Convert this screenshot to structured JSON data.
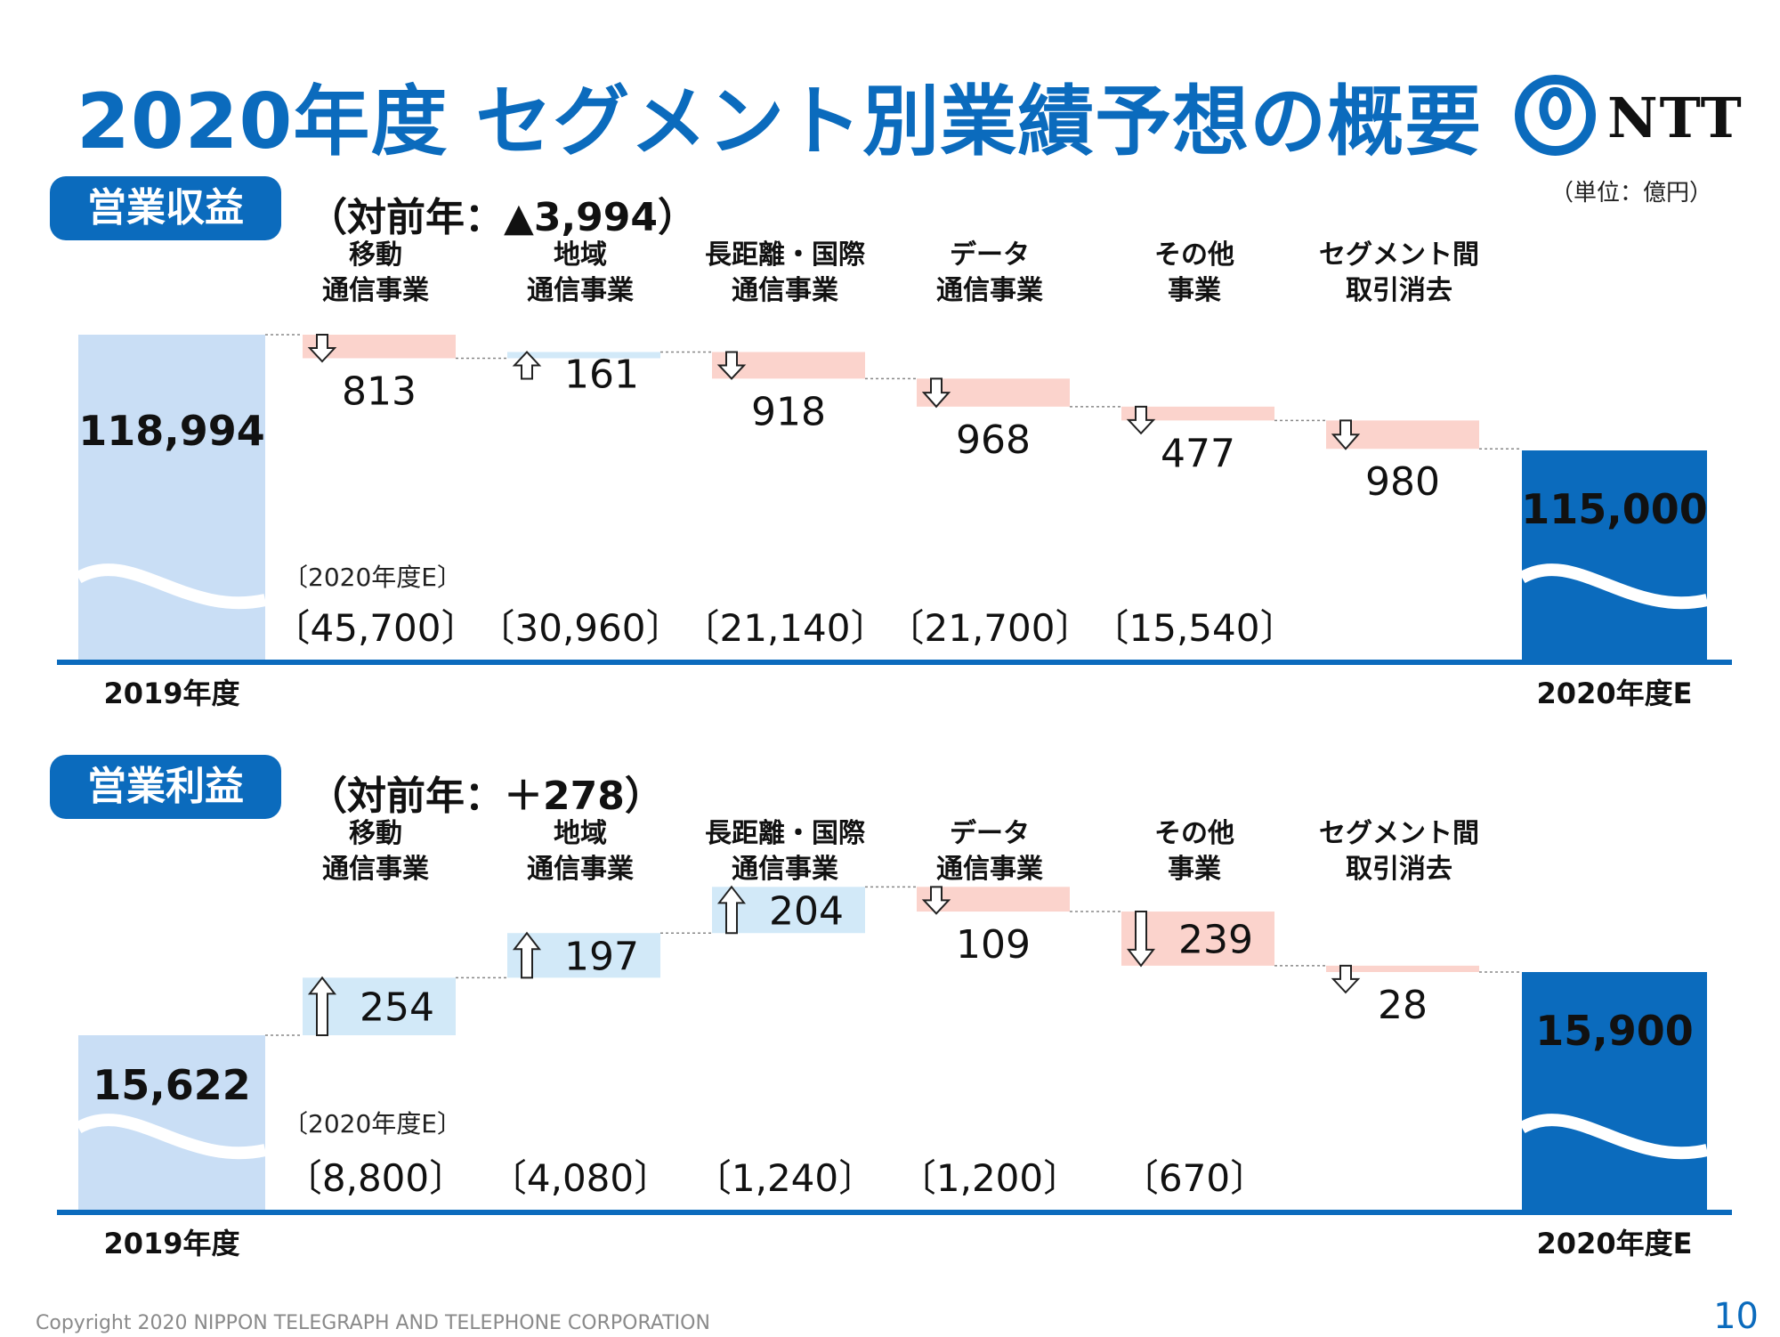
{
  "title": "2020年度 セグメント別業績予想の概要",
  "logo": {
    "text": "NTT",
    "mark": "ntt-logo-icon"
  },
  "unit": "（単位：億円）",
  "footer": "Copyright 2020 NIPPON TELEGRAPH AND TELEPHONE CORPORATION",
  "page_number": "10",
  "colors": {
    "primary": "#0b6bbd",
    "light_bar": "#c9def5",
    "decrease": "#fbd3cc",
    "increase": "#d2e9f8",
    "axis": "#0b6bbd"
  },
  "chart_data": [
    {
      "type": "bar",
      "subtype": "waterfall",
      "title": "営業収益",
      "subtitle": "（対前年：▲3,994）",
      "start": {
        "label": "2019年度",
        "value": 118994,
        "display": "118,994"
      },
      "end": {
        "label": "2020年度E",
        "value": 115000,
        "display": "115,000"
      },
      "categories": [
        "移動\n通信事業",
        "地域\n通信事業",
        "長距離・国際\n通信事業",
        "データ\n通信事業",
        "その他\n事業",
        "セグメント間\n取引消去"
      ],
      "category_lines": [
        [
          "移動",
          "通信事業"
        ],
        [
          "地域",
          "通信事業"
        ],
        [
          "長距離・国際",
          "通信事業"
        ],
        [
          "データ",
          "通信事業"
        ],
        [
          "その他",
          "事業"
        ],
        [
          "セグメント間",
          "取引消去"
        ]
      ],
      "changes": [
        -813,
        161,
        -918,
        -968,
        -477,
        -980
      ],
      "change_labels": [
        "813",
        "161",
        "918",
        "968",
        "477",
        "980"
      ],
      "directions": [
        "down",
        "up",
        "down",
        "down",
        "down",
        "down"
      ],
      "forecast_header": "〔2020年度E〕",
      "forecasts": [
        "〔45,700〕",
        "〔30,960〕",
        "〔21,140〕",
        "〔21,700〕",
        "〔15,540〕",
        ""
      ]
    },
    {
      "type": "bar",
      "subtype": "waterfall",
      "title": "営業利益",
      "subtitle": "（対前年：＋278）",
      "start": {
        "label": "2019年度",
        "value": 15622,
        "display": "15,622"
      },
      "end": {
        "label": "2020年度E",
        "value": 15900,
        "display": "15,900"
      },
      "categories": [
        "移動\n通信事業",
        "地域\n通信事業",
        "長距離・国際\n通信事業",
        "データ\n通信事業",
        "その他\n事業",
        "セグメント間\n取引消去"
      ],
      "category_lines": [
        [
          "移動",
          "通信事業"
        ],
        [
          "地域",
          "通信事業"
        ],
        [
          "長距離・国際",
          "通信事業"
        ],
        [
          "データ",
          "通信事業"
        ],
        [
          "その他",
          "事業"
        ],
        [
          "セグメント間",
          "取引消去"
        ]
      ],
      "changes": [
        254,
        197,
        204,
        -109,
        -239,
        -28
      ],
      "change_labels": [
        "254",
        "197",
        "204",
        "109",
        "239",
        "28"
      ],
      "directions": [
        "up",
        "up",
        "up",
        "down",
        "down",
        "down"
      ],
      "forecast_header": "〔2020年度E〕",
      "forecasts": [
        "〔8,800〕",
        "〔4,080〕",
        "〔1,240〕",
        "〔1,200〕",
        "〔670〕",
        ""
      ]
    }
  ]
}
